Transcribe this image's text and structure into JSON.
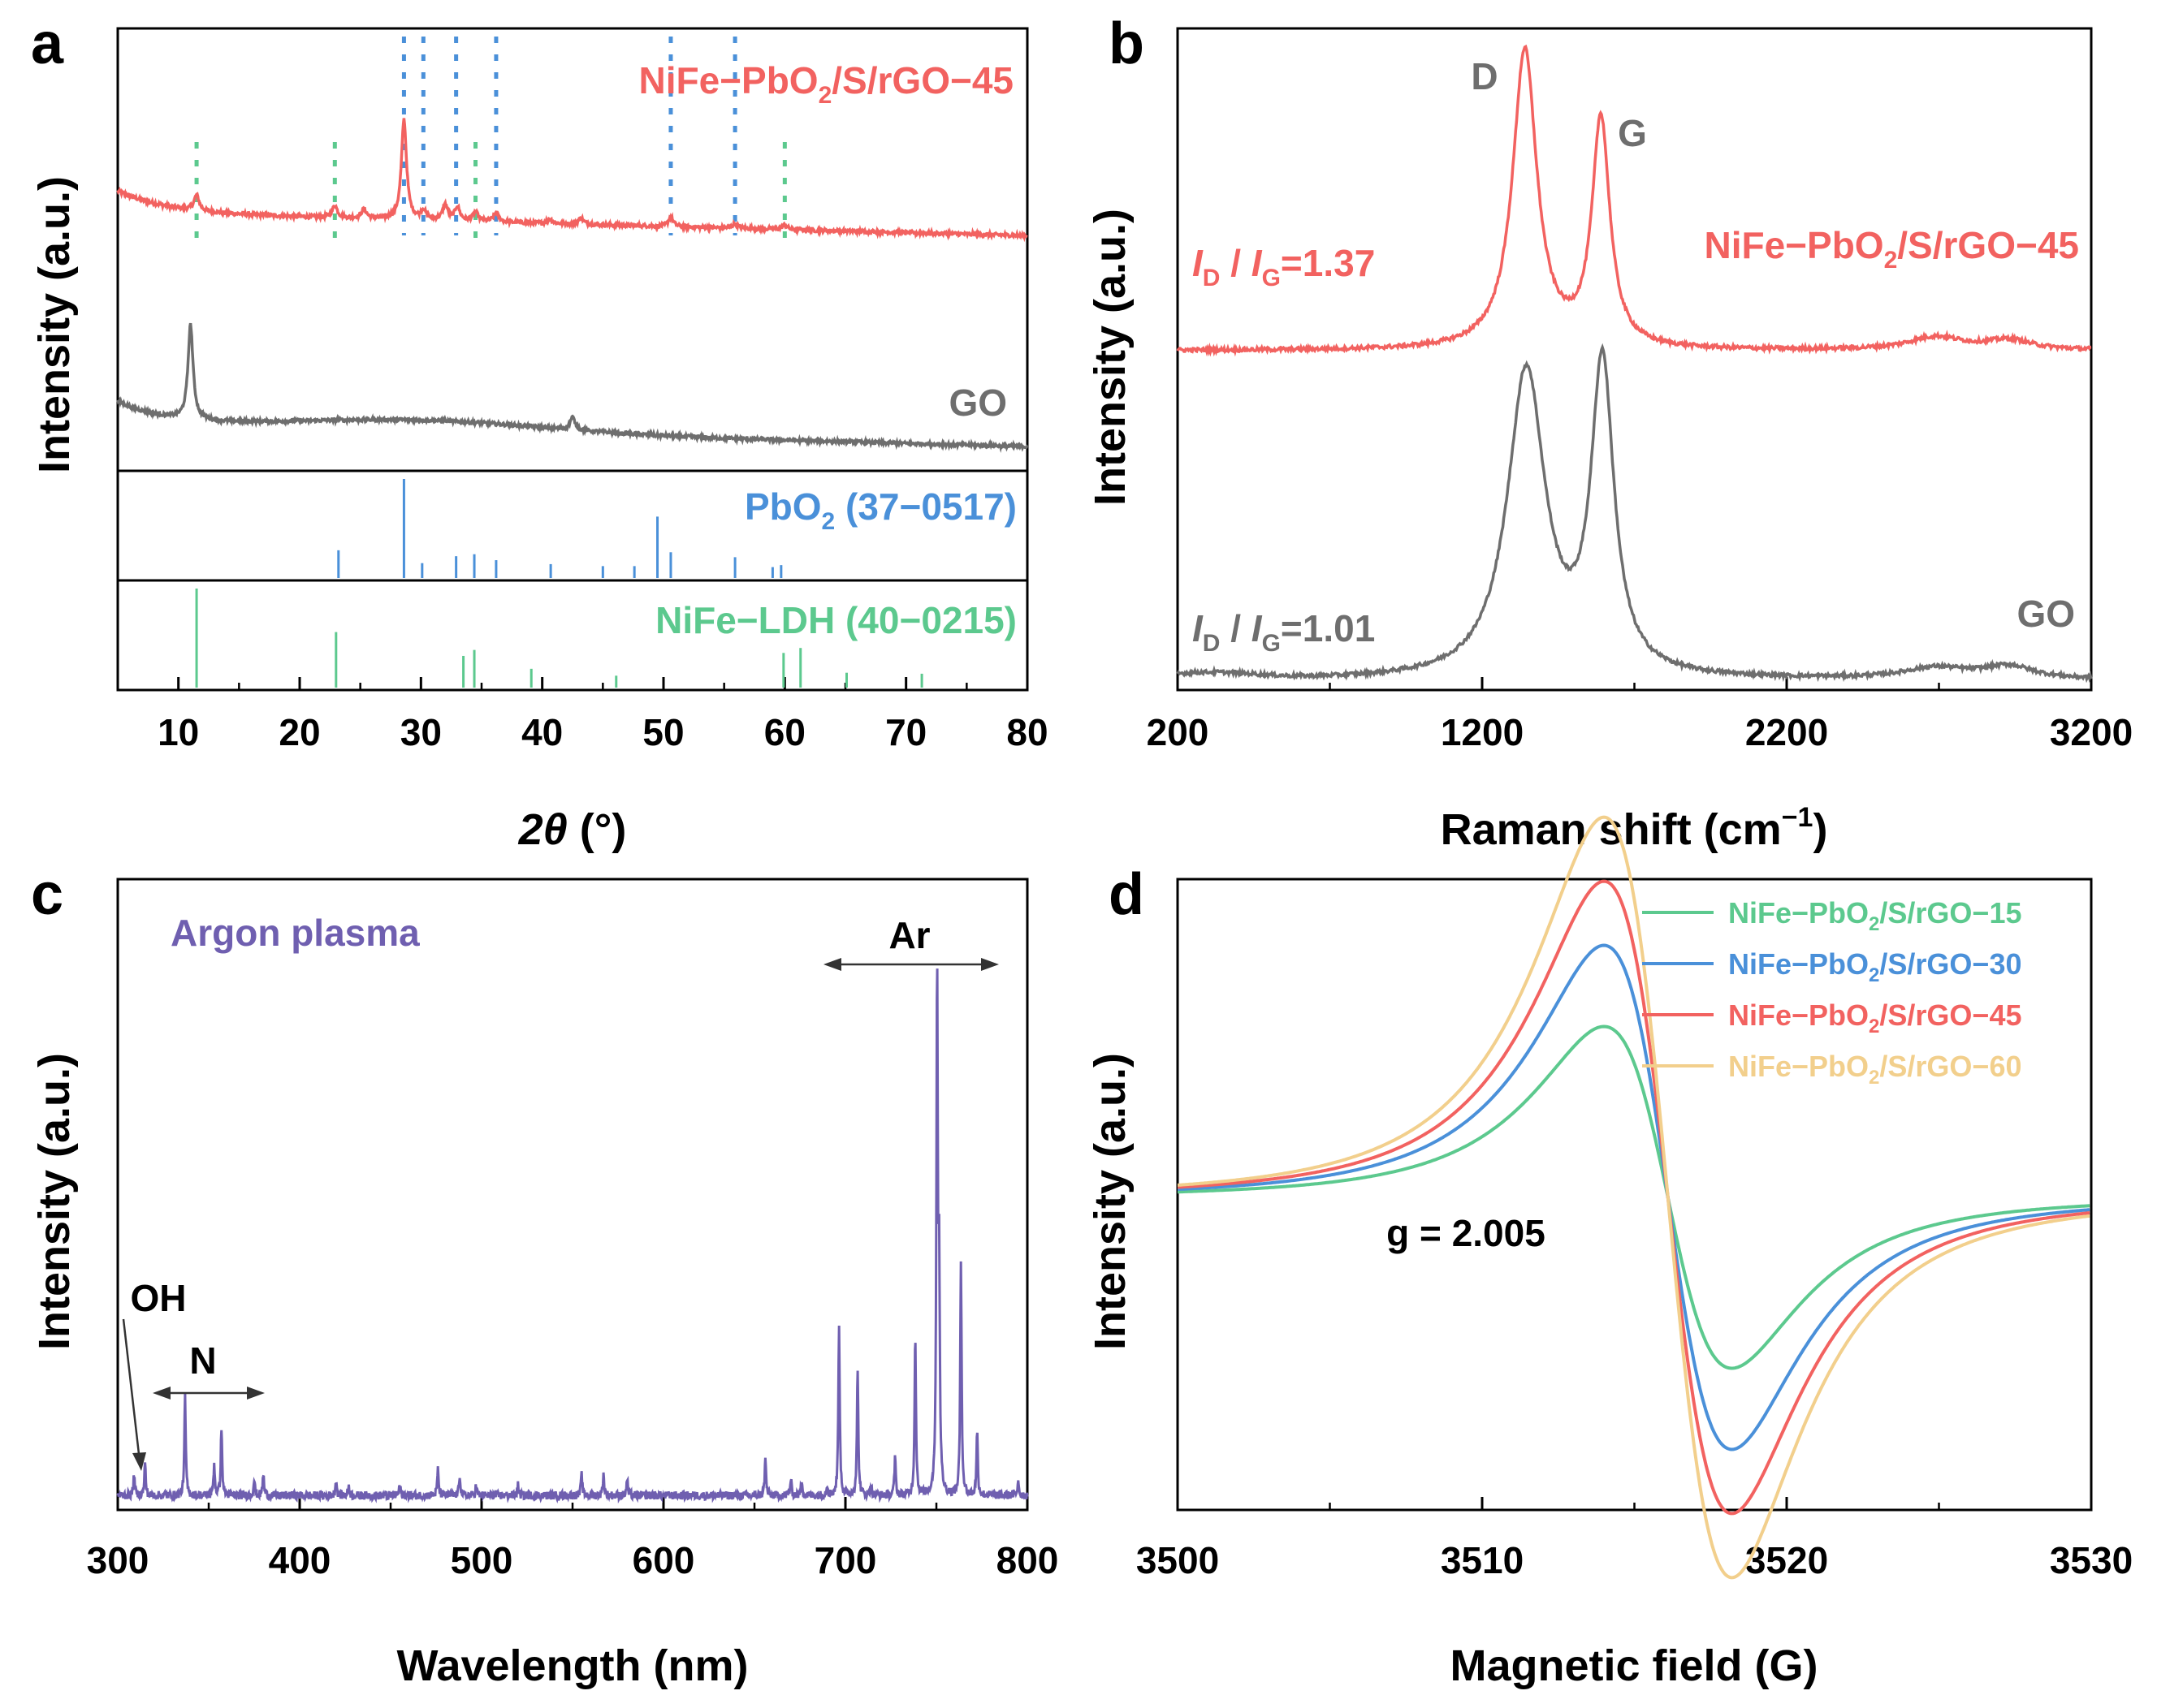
{
  "colors": {
    "red": "#f26260",
    "gray": "#6e6e6e",
    "blue": "#4a90d9",
    "green": "#5cc98e",
    "purple": "#6f5fb0",
    "yellow": "#f2cf8c",
    "black": "#000000"
  },
  "chart_data": [
    {
      "panel": "a",
      "type": "line",
      "xlabel": "2θ (°)",
      "ylabel": "Intensity (a.u.)",
      "xlim": [
        5,
        80
      ],
      "xticks": [
        10,
        20,
        30,
        40,
        50,
        60,
        70,
        80
      ],
      "series": [
        {
          "name": "NiFe−PbO2/S/rGO−45",
          "color": "red",
          "baseline": 1.28,
          "slope": -0.002,
          "decay_amp": 0.14,
          "decay_tau": 4,
          "noise": 0.012,
          "peaks": [
            [
              11.5,
              0.1
            ],
            [
              22.9,
              0.08
            ],
            [
              25.3,
              0.06
            ],
            [
              28.6,
              0.65
            ],
            [
              30.2,
              0.06
            ],
            [
              32.0,
              0.1
            ],
            [
              33.0,
              0.09
            ],
            [
              34.5,
              0.06
            ],
            [
              36.2,
              0.06
            ],
            [
              40.6,
              0.03
            ],
            [
              43.2,
              0.04
            ],
            [
              50.6,
              0.06
            ],
            [
              55.9,
              0.03
            ],
            [
              60.0,
              0.03
            ]
          ]
        },
        {
          "name": "GO",
          "color": "gray",
          "baseline": 0.42,
          "slope": -0.0015,
          "decay_amp": 0.1,
          "decay_tau": 3.5,
          "noise": 0.008,
          "peaks": [
            [
              11.0,
              0.45
            ],
            [
              42.5,
              0.06
            ]
          ],
          "hump": [
            30,
            10,
            0.05
          ]
        }
      ],
      "markers_pbo2": [
        28.6,
        30.2,
        32.9,
        36.2,
        50.6,
        55.9
      ],
      "markers_ldh": [
        11.5,
        22.9,
        34.5,
        60.0
      ],
      "reference_pbo2": {
        "name": "PbO2 (37−0517)",
        "lines": [
          [
            23.2,
            0.28
          ],
          [
            28.6,
            1.0
          ],
          [
            30.1,
            0.15
          ],
          [
            32.9,
            0.22
          ],
          [
            34.4,
            0.24
          ],
          [
            36.2,
            0.18
          ],
          [
            40.7,
            0.14
          ],
          [
            45.0,
            0.12
          ],
          [
            47.6,
            0.12
          ],
          [
            49.5,
            0.62
          ],
          [
            50.6,
            0.26
          ],
          [
            55.9,
            0.21
          ],
          [
            59.0,
            0.11
          ],
          [
            59.7,
            0.13
          ]
        ]
      },
      "reference_ldh": {
        "name": "NiFe−LDH (40−0215)",
        "lines": [
          [
            11.5,
            1.0
          ],
          [
            23.0,
            0.56
          ],
          [
            33.5,
            0.32
          ],
          [
            34.4,
            0.38
          ],
          [
            39.1,
            0.19
          ],
          [
            46.1,
            0.12
          ],
          [
            59.9,
            0.35
          ],
          [
            61.3,
            0.4
          ],
          [
            65.1,
            0.15
          ],
          [
            71.3,
            0.14
          ]
        ]
      },
      "text": {
        "panel_label": "a",
        "xlabel_theta": "2θ",
        "xlabel_unit": "(°)",
        "label_red_prefix": "NiFe−PbO",
        "label_red_sub": "2",
        "label_red_suffix": "/S/rGO−45",
        "label_gray": "GO",
        "label_pbo2_prefix": "PbO",
        "label_pbo2_sub": "2",
        "label_pbo2_suffix": " (37−0517)",
        "label_ldh": "NiFe−LDH (40−0215)"
      }
    },
    {
      "panel": "b",
      "type": "line",
      "xlabel": "Raman shift (cm−1)",
      "ylabel": "Intensity (a.u.)",
      "xlim": [
        200,
        3200
      ],
      "xticks": [
        200,
        1200,
        2200,
        3200
      ],
      "series": [
        {
          "name": "NiFe−PbO2/S/rGO−45",
          "color": "red",
          "offset": 1.08,
          "noise": 0.006,
          "peaks": [
            [
              1340,
              0.92,
              48
            ],
            [
              1590,
              0.7,
              35
            ],
            [
              2690,
              0.04,
              110
            ],
            [
              2930,
              0.03,
              90
            ]
          ]
        },
        {
          "name": "GO",
          "color": "gray",
          "offset": 0.0,
          "noise": 0.006,
          "peaks": [
            [
              1345,
              0.98,
              75
            ],
            [
              1595,
              0.98,
              45
            ],
            [
              2690,
              0.035,
              130
            ],
            [
              2930,
              0.04,
              100
            ]
          ],
          "bump": [
            300,
            0.02,
            150
          ]
        }
      ],
      "ratio_red": "1.37",
      "ratio_gray": "1.01",
      "text": {
        "panel_label": "b",
        "xlabel_main": "Raman shift (cm",
        "xlabel_sup": "−1",
        "xlabel_close": ")",
        "label_D": "D",
        "label_G": "G",
        "ratio_I": "I",
        "ratio_D": "D",
        "ratio_slash": " / ",
        "ratio_G": "G",
        "ratio_eq_red": "=1.37",
        "ratio_eq_gray": "=1.01",
        "label_red_prefix": "NiFe−PbO",
        "label_red_sub": "2",
        "label_red_suffix": "/S/rGO−45",
        "label_gray": "GO"
      }
    },
    {
      "panel": "c",
      "type": "line",
      "xlabel": "Wavelength (nm)",
      "ylabel": "Intensity (a.u.)",
      "xlim": [
        300,
        800
      ],
      "xticks": [
        300,
        400,
        500,
        600,
        700,
        800
      ],
      "series": [
        {
          "name": "Argon plasma",
          "color": "purple",
          "noise": 0.008,
          "lines": [
            [
              309,
              0.04
            ],
            [
              315,
              0.06
            ],
            [
              337,
              0.19
            ],
            [
              353,
              0.06
            ],
            [
              357,
              0.13
            ],
            [
              375,
              0.03
            ],
            [
              380,
              0.04
            ],
            [
              420,
              0.03
            ],
            [
              427,
              0.02
            ],
            [
              455,
              0.02
            ],
            [
              476,
              0.05
            ],
            [
              488,
              0.04
            ],
            [
              497,
              0.02
            ],
            [
              520,
              0.02
            ],
            [
              555,
              0.04
            ],
            [
              567,
              0.04
            ],
            [
              580,
              0.03
            ],
            [
              656,
              0.07
            ],
            [
              670,
              0.03
            ],
            [
              676,
              0.03
            ],
            [
              690,
              0.02
            ],
            [
              696.5,
              0.33
            ],
            [
              706.7,
              0.24
            ],
            [
              714,
              0.02
            ],
            [
              727.3,
              0.07
            ],
            [
              738.4,
              0.31
            ],
            [
              750.4,
              1.0
            ],
            [
              751.5,
              0.4
            ],
            [
              763.5,
              0.45
            ],
            [
              772.4,
              0.12
            ],
            [
              795,
              0.03
            ]
          ]
        }
      ],
      "text": {
        "panel_label": "c",
        "label_argon": "Argon plasma",
        "label_Ar": "Ar",
        "label_OH": "OH",
        "label_N": "N"
      }
    },
    {
      "panel": "d",
      "type": "line",
      "xlabel": "Magnetic field (G)",
      "ylabel": "Intensity (a.u.)",
      "xlim": [
        3500,
        3530
      ],
      "xticks": [
        3500,
        3510,
        3520,
        3530
      ],
      "center_field": 3516.1,
      "linewidth": 6.3,
      "series": [
        {
          "name": "NiFe−PbO2/S/rGO−15",
          "color": "green",
          "amplitude": 0.4
        },
        {
          "name": "NiFe−PbO2/S/rGO−30",
          "color": "blue",
          "amplitude": 0.59
        },
        {
          "name": "NiFe−PbO2/S/rGO−45",
          "color": "red",
          "amplitude": 0.74
        },
        {
          "name": "NiFe−PbO2/S/rGO−60",
          "color": "yellow",
          "amplitude": 0.89
        }
      ],
      "annotation": "g = 2.005",
      "text": {
        "panel_label": "d",
        "g_value": "g = 2.005",
        "legend_prefix": "NiFe−PbO",
        "legend_sub": "2",
        "legend_suffix_15": "/S/rGO−15",
        "legend_suffix_30": "/S/rGO−30",
        "legend_suffix_45": "/S/rGO−45",
        "legend_suffix_60": "/S/rGO−60"
      }
    }
  ],
  "panel_a_ylabel": "Intensity (a.u.)",
  "panel_b_ylabel": "Intensity (a.u.)",
  "panel_c_ylabel": "Intensity (a.u.)",
  "panel_d_ylabel": "Intensity (a.u.)",
  "panel_a_xticks": [
    "10",
    "20",
    "30",
    "40",
    "50",
    "60",
    "70",
    "80"
  ],
  "panel_b_xticks": [
    "200",
    "1200",
    "2200",
    "3200"
  ],
  "panel_b_xlabel_prefix": "Raman shift (cm",
  "panel_c_xticks": [
    "300",
    "400",
    "500",
    "600",
    "700",
    "800"
  ],
  "panel_c_xlabel": "Wavelength (nm)",
  "panel_d_xticks": [
    "3500",
    "3510",
    "3520",
    "3530"
  ],
  "panel_d_xlabel": "Magnetic field (G)"
}
